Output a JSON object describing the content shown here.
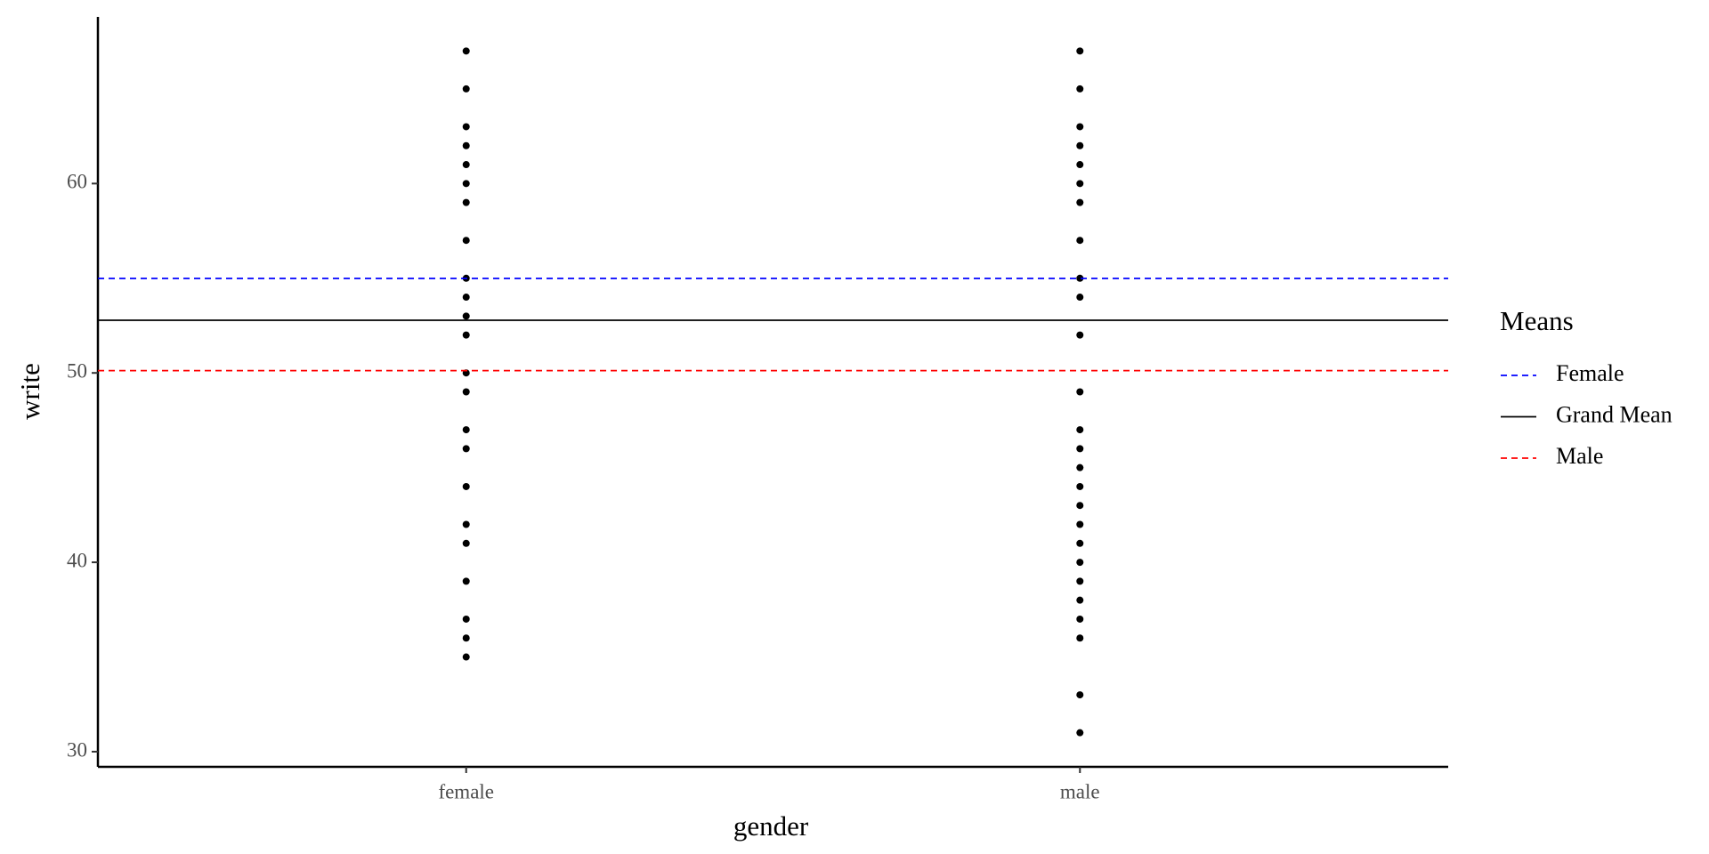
{
  "chart_data": {
    "type": "strip",
    "x_label": "gender",
    "y_label": "write",
    "categories": [
      "female",
      "male"
    ],
    "values": [
      [
        67,
        65,
        63,
        62,
        61,
        60,
        59,
        57,
        55,
        54,
        53,
        52,
        50,
        49,
        47,
        46,
        44,
        42,
        41,
        39,
        37,
        36,
        35
      ],
      [
        67,
        65,
        63,
        62,
        61,
        60,
        59,
        57,
        55,
        54,
        52,
        49,
        47,
        46,
        45,
        44,
        43,
        42,
        41,
        40,
        39,
        38,
        37,
        36,
        33,
        31
      ]
    ],
    "point_color": "#000000",
    "ylim": [
      29.2,
      68.8
    ],
    "yticks": [
      30,
      40,
      50,
      60
    ],
    "legend_title": "Means",
    "hlines": [
      {
        "name": "Female",
        "value": 54.99,
        "color": "#0000ff",
        "dashed": true
      },
      {
        "name": "Grand Mean",
        "value": 52.78,
        "color": "#000000",
        "dashed": false
      },
      {
        "name": "Male",
        "value": 50.12,
        "color": "#ff0000",
        "dashed": true
      }
    ]
  }
}
